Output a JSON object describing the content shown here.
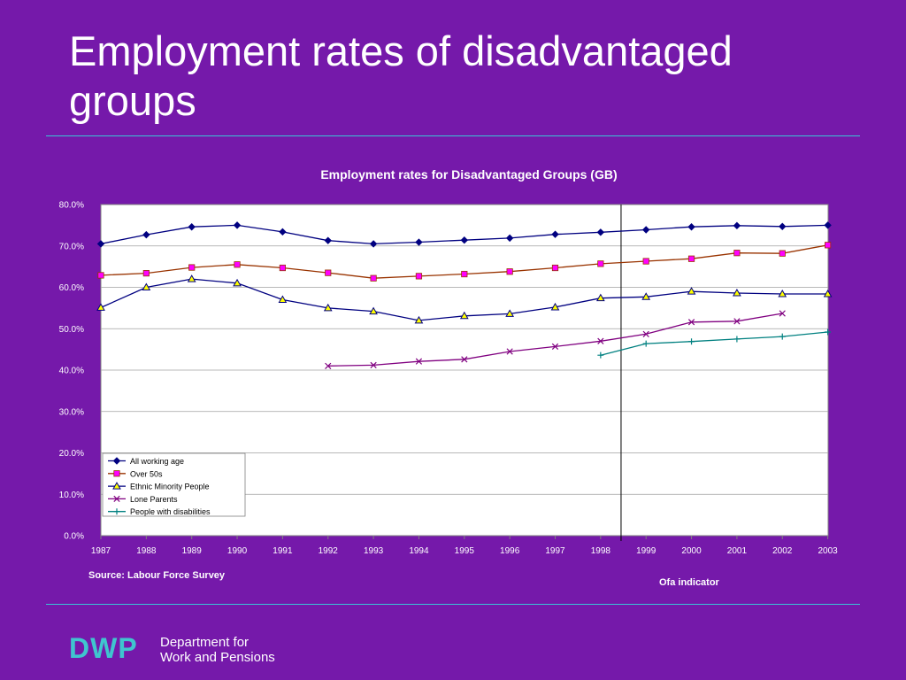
{
  "slide": {
    "title": "Employment rates of disadvantaged groups",
    "source": "Source: Labour Force Survey",
    "ofa_label": "Ofa indicator",
    "logo": {
      "mark": "DWP",
      "line1": "Department for",
      "line2": "Work and Pensions"
    },
    "colors": {
      "background": "#7519aa",
      "rule": "#39c6d6",
      "logo_accent": "#3fc5cf"
    }
  },
  "chart_data": {
    "type": "line",
    "title": "Employment rates for Disadvantaged Groups (GB)",
    "xlabel": "",
    "ylabel": "",
    "categories": [
      "1987",
      "1988",
      "1989",
      "1990",
      "1991",
      "1992",
      "1993",
      "1994",
      "1995",
      "1996",
      "1997",
      "1998",
      "1999",
      "2000",
      "2001",
      "2002",
      "2003"
    ],
    "yticks": [
      "0.0%",
      "10.0%",
      "20.0%",
      "30.0%",
      "40.0%",
      "50.0%",
      "60.0%",
      "70.0%",
      "80.0%"
    ],
    "ylim": [
      0,
      80
    ],
    "grid": true,
    "legend_position": "bottom-left",
    "vertical_marker": {
      "between": [
        "1998",
        "1999"
      ]
    },
    "series": [
      {
        "name": "All working age",
        "color": "#000080",
        "marker": "diamond",
        "values": [
          70.5,
          72.7,
          74.6,
          75.0,
          73.4,
          71.3,
          70.5,
          70.9,
          71.4,
          71.9,
          72.8,
          73.3,
          73.9,
          74.6,
          74.9,
          74.7,
          75.0
        ]
      },
      {
        "name": "Over 50s",
        "color": "#993300",
        "marker": "square",
        "markerFill": "#ff00ff",
        "values": [
          62.9,
          63.4,
          64.8,
          65.5,
          64.7,
          63.5,
          62.2,
          62.7,
          63.2,
          63.8,
          64.7,
          65.7,
          66.3,
          66.9,
          68.3,
          68.2,
          70.2
        ]
      },
      {
        "name": "Ethnic Minority People",
        "color": "#000080",
        "marker": "triangle",
        "markerFill": "#ffff00",
        "values": [
          55.1,
          60.0,
          62.0,
          61.0,
          57.0,
          55.0,
          54.2,
          52.0,
          53.1,
          53.6,
          55.2,
          57.4,
          57.7,
          59.0,
          58.6,
          58.4,
          58.4
        ]
      },
      {
        "name": "Lone Parents",
        "color": "#800080",
        "marker": "x",
        "values": [
          null,
          null,
          null,
          null,
          null,
          41.0,
          41.2,
          42.1,
          42.6,
          44.5,
          45.7,
          47.0,
          48.7,
          51.6,
          51.8,
          53.7,
          null
        ]
      },
      {
        "name": "People with disabilities",
        "color": "#008080",
        "marker": "plus",
        "values": [
          null,
          null,
          null,
          null,
          null,
          null,
          null,
          null,
          null,
          null,
          null,
          43.6,
          46.4,
          46.9,
          47.5,
          48.1,
          49.2
        ]
      }
    ]
  }
}
